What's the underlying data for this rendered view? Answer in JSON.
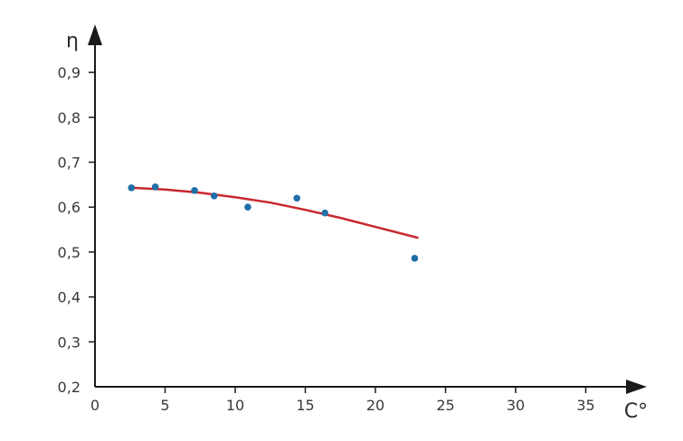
{
  "chart_data": {
    "type": "scatter",
    "title": "",
    "xlabel": "C°",
    "ylabel": "η",
    "xlim": [
      0,
      38
    ],
    "ylim": [
      0.2,
      0.97
    ],
    "x_ticks": [
      0,
      5,
      10,
      15,
      20,
      25,
      30,
      35
    ],
    "x_tick_labels": [
      "0",
      "5",
      "10",
      "15",
      "20",
      "25",
      "30",
      "35"
    ],
    "y_ticks": [
      0.2,
      0.3,
      0.4,
      0.5,
      0.6,
      0.7,
      0.8,
      0.9
    ],
    "y_tick_labels": [
      "0,2",
      "0,3",
      "0,4",
      "0,5",
      "0,6",
      "0,7",
      "0,8",
      "0,9"
    ],
    "grid": false,
    "series": [
      {
        "kind": "points",
        "color": "#1f6fa8",
        "points": [
          {
            "x": 2.6,
            "y": 0.643
          },
          {
            "x": 4.3,
            "y": 0.645
          },
          {
            "x": 7.1,
            "y": 0.637
          },
          {
            "x": 8.5,
            "y": 0.625
          },
          {
            "x": 10.9,
            "y": 0.6
          },
          {
            "x": 14.4,
            "y": 0.62
          },
          {
            "x": 16.4,
            "y": 0.587
          },
          {
            "x": 22.8,
            "y": 0.486
          }
        ]
      },
      {
        "kind": "trend-line",
        "color": "#c8282c",
        "points": [
          {
            "x": 2.6,
            "y": 0.643
          },
          {
            "x": 5,
            "y": 0.639
          },
          {
            "x": 7.5,
            "y": 0.632
          },
          {
            "x": 10,
            "y": 0.622
          },
          {
            "x": 12.5,
            "y": 0.61
          },
          {
            "x": 15,
            "y": 0.594
          },
          {
            "x": 17.5,
            "y": 0.576
          },
          {
            "x": 20,
            "y": 0.556
          },
          {
            "x": 23,
            "y": 0.532
          }
        ]
      }
    ]
  }
}
